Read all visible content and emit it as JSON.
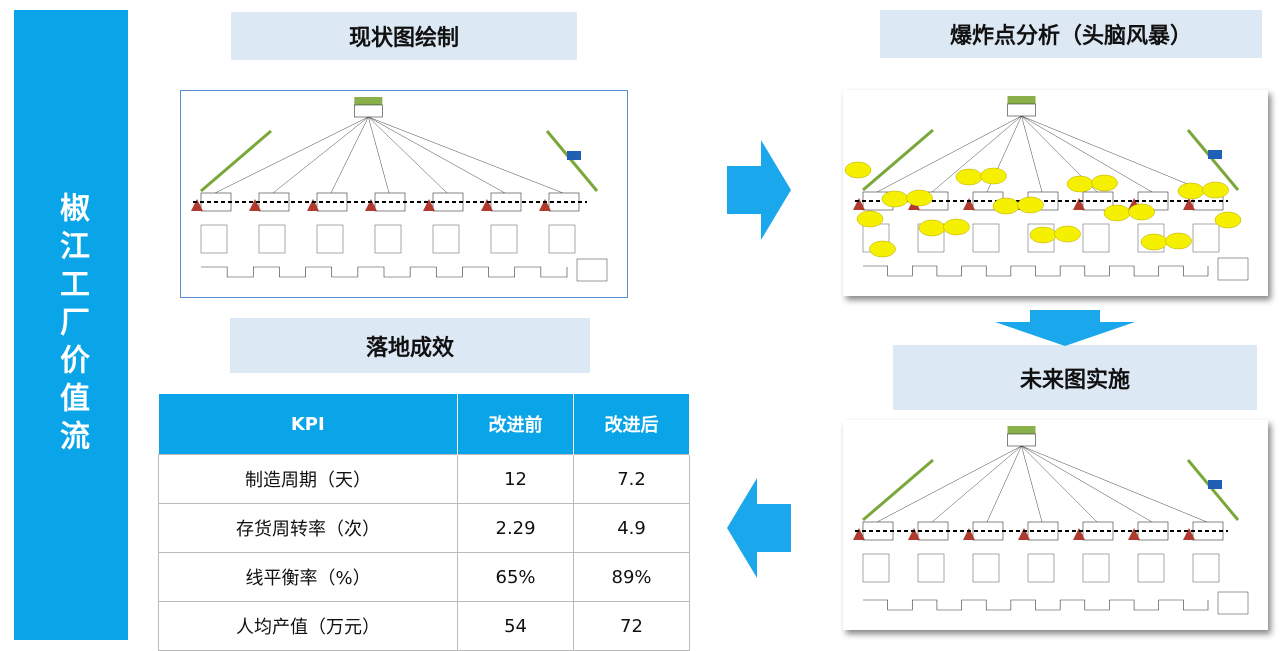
{
  "sidebar": {
    "title": "椒江工厂价值流"
  },
  "sections": {
    "current": "现状图绘制",
    "analysis": "爆炸点分析（头脑风暴）",
    "future": "未来图实施",
    "results": "落地成效"
  },
  "table": {
    "header": [
      "KPI",
      "改进前",
      "改进后"
    ],
    "rows": [
      [
        "制造周期（天）",
        "12",
        "7.2"
      ],
      [
        "存货周转率（次）",
        "2.29",
        "4.9"
      ],
      [
        "线平衡率（%）",
        "65%",
        "89%"
      ],
      [
        "人均产值（万元）",
        "54",
        "72"
      ]
    ]
  }
}
